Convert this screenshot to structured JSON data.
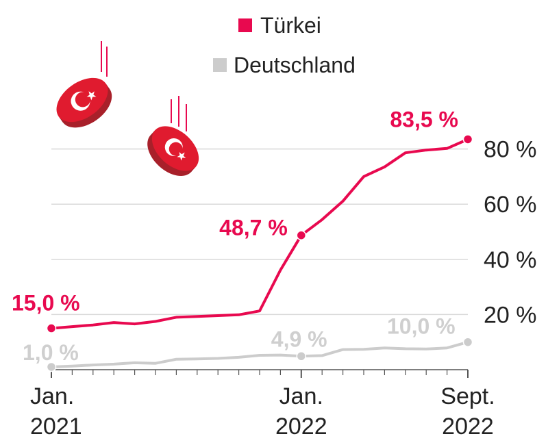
{
  "colors": {
    "turkey": "#e8094f",
    "germany": "#cccccc",
    "grid": "#d9d9d9",
    "coin_dark": "#b3262e",
    "coin_face": "#e01b2f"
  },
  "legend": {
    "turkey": "Türkei",
    "germany": "Deutschland"
  },
  "icons": [
    "falling-turkish-lira-coin-icon",
    "falling-turkish-lira-coin-icon"
  ],
  "chart_data": {
    "type": "line",
    "x": [
      "2021-01",
      "2021-02",
      "2021-03",
      "2021-04",
      "2021-05",
      "2021-06",
      "2021-07",
      "2021-08",
      "2021-09",
      "2021-10",
      "2021-11",
      "2021-12",
      "2022-01",
      "2022-02",
      "2022-03",
      "2022-04",
      "2022-05",
      "2022-06",
      "2022-07",
      "2022-08",
      "2022-09"
    ],
    "series": [
      {
        "name": "Türkei",
        "values": [
          15.0,
          15.6,
          16.2,
          17.1,
          16.6,
          17.5,
          19.0,
          19.3,
          19.6,
          19.9,
          21.3,
          36.1,
          48.7,
          54.4,
          61.1,
          70.0,
          73.5,
          78.6,
          79.6,
          80.2,
          83.5
        ]
      },
      {
        "name": "Deutschland",
        "values": [
          1.0,
          1.3,
          1.7,
          2.0,
          2.5,
          2.3,
          3.8,
          3.9,
          4.1,
          4.5,
          5.2,
          5.3,
          4.9,
          5.1,
          7.3,
          7.4,
          7.9,
          7.6,
          7.5,
          7.9,
          10.0
        ]
      }
    ],
    "yticks": [
      "20 %",
      "40 %",
      "60 %",
      "80 %"
    ],
    "ytick_values": [
      20,
      40,
      60,
      80
    ],
    "ylim": [
      0,
      88
    ],
    "xticks": [
      {
        "index": 0,
        "month": "Jan.",
        "year": "2021"
      },
      {
        "index": 12,
        "month": "Jan.",
        "year": "2022"
      },
      {
        "index": 20,
        "month": "Sept.",
        "year": "2022"
      }
    ],
    "annotations": [
      {
        "series": 0,
        "index": 0,
        "text": "15,0 %"
      },
      {
        "series": 0,
        "index": 12,
        "text": "48,7 %"
      },
      {
        "series": 0,
        "index": 20,
        "text": "83,5 %"
      },
      {
        "series": 1,
        "index": 0,
        "text": "1,0 %"
      },
      {
        "series": 1,
        "index": 12,
        "text": "4,9 %"
      },
      {
        "series": 1,
        "index": 20,
        "text": "10,0 %"
      }
    ],
    "grid": true,
    "legend_position": "top"
  }
}
